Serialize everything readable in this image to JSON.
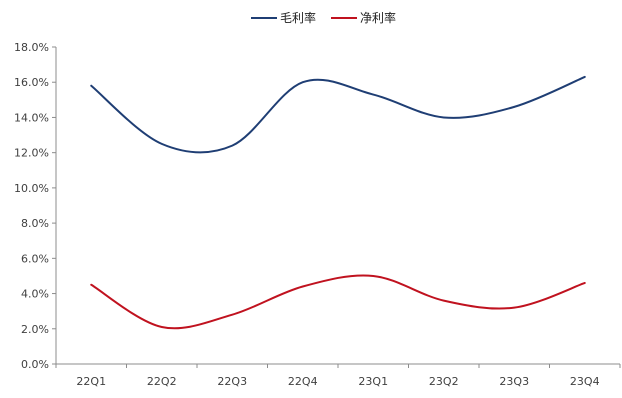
{
  "chart_data": {
    "type": "line",
    "categories": [
      "22Q1",
      "22Q2",
      "22Q3",
      "22Q4",
      "23Q1",
      "23Q2",
      "23Q3",
      "23Q4"
    ],
    "series": [
      {
        "name": "毛利率",
        "color": "#1f3e74",
        "values": [
          15.8,
          12.5,
          12.4,
          16.0,
          15.3,
          14.0,
          14.6,
          16.3
        ]
      },
      {
        "name": "净利率",
        "color": "#c0121f",
        "values": [
          4.5,
          2.1,
          2.8,
          4.4,
          5.0,
          3.6,
          3.2,
          4.6
        ]
      }
    ],
    "y_ticks": [
      "0.0%",
      "2.0%",
      "4.0%",
      "6.0%",
      "8.0%",
      "10.0%",
      "12.0%",
      "14.0%",
      "16.0%",
      "18.0%"
    ],
    "ylim": [
      0,
      18
    ],
    "y_unit": "percent",
    "legend_position": "top-center",
    "grid": false,
    "smooth": true
  }
}
